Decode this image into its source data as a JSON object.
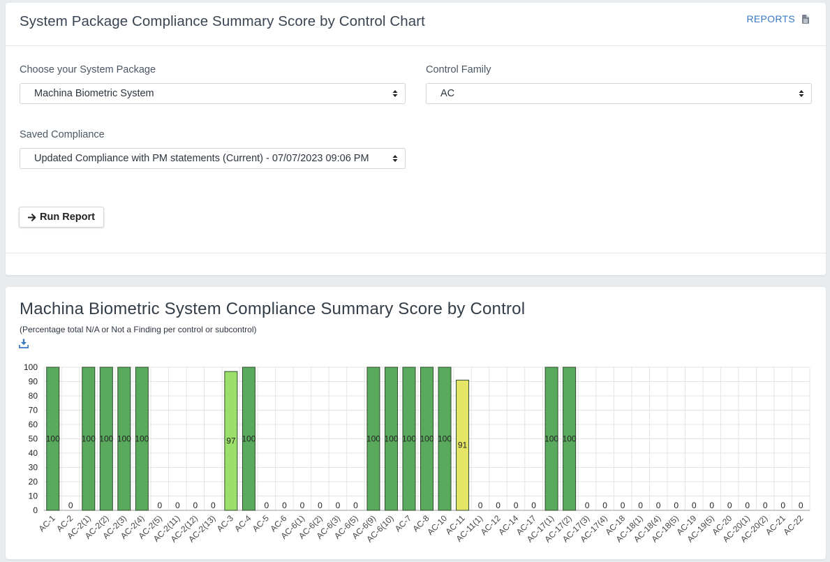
{
  "top_card": {
    "title": "System Package Compliance Summary Score by Control Chart",
    "reports_label": "REPORTS",
    "reports_icon": "document-icon",
    "package_label": "Choose your System Package",
    "package_value": "Machina Biometric System",
    "family_label": "Control Family",
    "family_value": "AC",
    "saved_label": "Saved Compliance",
    "saved_value": "Updated Compliance with PM statements (Current) - 07/07/2023 09:06 PM",
    "run_label": "Run Report",
    "run_icon": "arrow-right-icon"
  },
  "chart_card": {
    "title": "Machina Biometric System Compliance Summary Score by Control",
    "subtitle": "(Percentage total N/A or Not a Finding per control or subcontrol)",
    "download_icon": "download-icon"
  },
  "colors": {
    "accent": "#3a78c2",
    "bar_full": "#5aaa5e",
    "bar_high": "#9be06a",
    "bar_mid": "#e4e566"
  },
  "chart_data": {
    "type": "bar",
    "title": "Machina Biometric System Compliance Summary Score by Control",
    "subtitle": "(Percentage total N/A or Not a Finding per control or subcontrol)",
    "ylim": [
      0,
      100
    ],
    "yticks": [
      0,
      10,
      20,
      30,
      40,
      50,
      60,
      70,
      80,
      90,
      100
    ],
    "grid": true,
    "categories": [
      "AC-1",
      "AC-2",
      "AC-2(1)",
      "AC-2(2)",
      "AC-2(3)",
      "AC-2(4)",
      "AC-2(5)",
      "AC-2(11)",
      "AC-2(12)",
      "AC-2(13)",
      "AC-3",
      "AC-4",
      "AC-5",
      "AC-6",
      "AC-6(1)",
      "AC-6(2)",
      "AC-6(3)",
      "AC-6(5)",
      "AC-6(9)",
      "AC-6(10)",
      "AC-7",
      "AC-8",
      "AC-10",
      "AC-11",
      "AC-11(1)",
      "AC-12",
      "AC-14",
      "AC-17",
      "AC-17(1)",
      "AC-17(2)",
      "AC-17(3)",
      "AC-17(4)",
      "AC-18",
      "AC-18(1)",
      "AC-18(4)",
      "AC-18(5)",
      "AC-19",
      "AC-19(5)",
      "AC-20",
      "AC-20(1)",
      "AC-20(2)",
      "AC-21",
      "AC-22"
    ],
    "values": [
      100,
      0,
      100,
      100,
      100,
      100,
      0,
      0,
      0,
      0,
      97,
      100,
      0,
      0,
      0,
      0,
      0,
      0,
      100,
      100,
      100,
      100,
      100,
      91,
      0,
      0,
      0,
      0,
      100,
      100,
      0,
      0,
      0,
      0,
      0,
      0,
      0,
      0,
      0,
      0,
      0,
      0,
      0
    ]
  }
}
